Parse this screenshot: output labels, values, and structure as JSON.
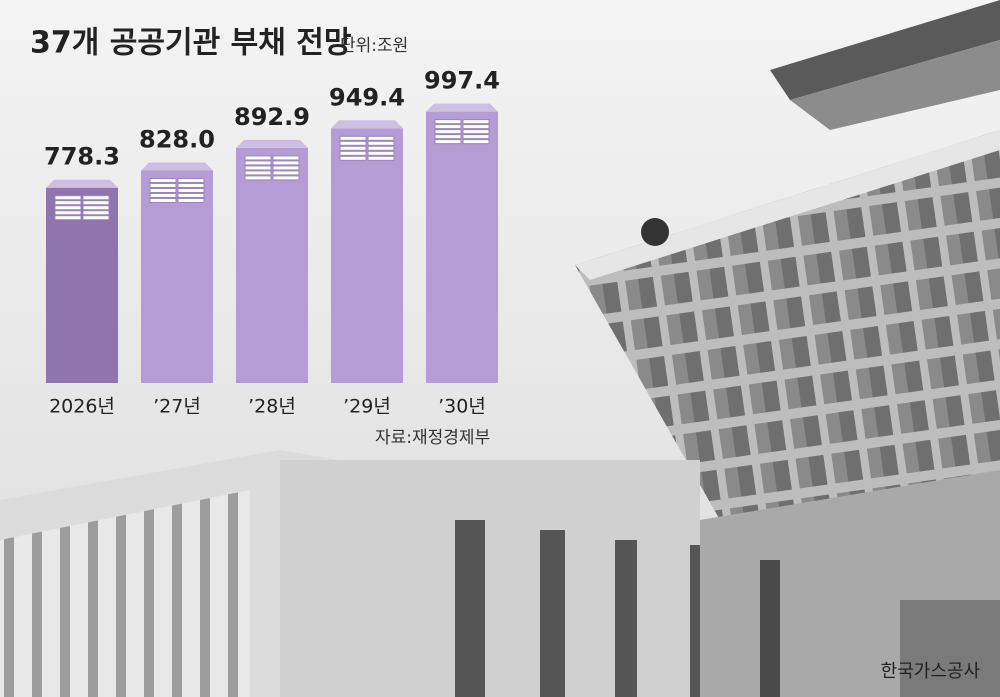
{
  "chart_data": {
    "type": "bar",
    "title": "37개 공공기관 부채 전망",
    "unit": "단위:조원",
    "source": "자료:재정경제부",
    "photo_credit": "한국가스공사",
    "categories": [
      "2026년",
      "’27년",
      "’28년",
      "’29년",
      "’30년"
    ],
    "values": [
      778.3,
      828.0,
      892.9,
      949.4,
      997.4
    ],
    "value_labels": [
      "778.3",
      "828.0",
      "892.9",
      "949.4",
      "997.4"
    ],
    "colors": [
      "#8f74ae",
      "#b49cd4",
      "#b49cd4",
      "#b49cd4",
      "#b49cd4"
    ],
    "ylim": [
      216,
      1100
    ]
  }
}
